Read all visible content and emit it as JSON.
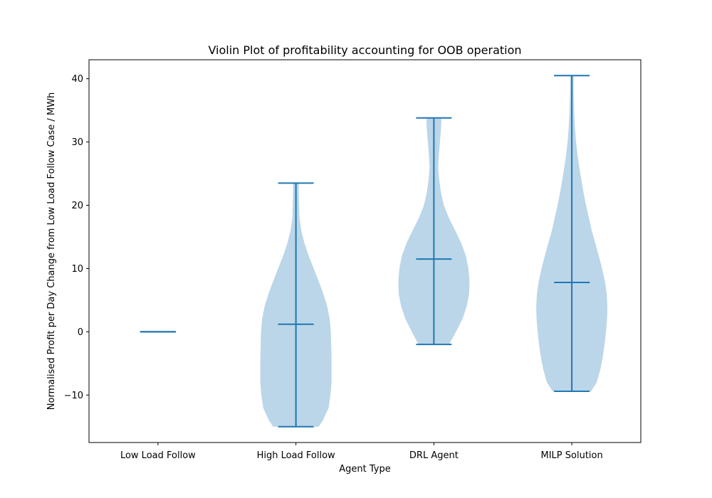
{
  "chart_data": {
    "type": "violin",
    "title": "Violin Plot of profitability accounting for OOB operation",
    "xlabel": "Agent Type",
    "ylabel": "Normalised Profit per Day Change from Low Load Follow Case / MWh",
    "categories": [
      "Low Load Follow",
      "High Load Follow",
      "DRL Agent",
      "MILP Solution"
    ],
    "ylim": [
      -17.5,
      43
    ],
    "yticks": [
      -10,
      0,
      10,
      20,
      30,
      40
    ],
    "grid": false,
    "colors": {
      "line": "#1f77b4",
      "fill": "#1f77b4",
      "fill_opacity": 0.3
    },
    "violins": [
      {
        "category": "Low Load Follow",
        "min": 0,
        "max": 0,
        "mean": 0,
        "density": [
          [
            0,
            0
          ]
        ]
      },
      {
        "category": "High Load Follow",
        "min": -15,
        "max": 23.5,
        "mean": 1.2,
        "density": [
          [
            -15,
            0.64
          ],
          [
            -14,
            0.76
          ],
          [
            -12,
            0.92
          ],
          [
            -10,
            0.97
          ],
          [
            -8,
            1.0
          ],
          [
            -6,
            1.0
          ],
          [
            -4,
            1.0
          ],
          [
            -2,
            0.99
          ],
          [
            0,
            0.98
          ],
          [
            2,
            0.95
          ],
          [
            4,
            0.88
          ],
          [
            6,
            0.77
          ],
          [
            8,
            0.64
          ],
          [
            10,
            0.5
          ],
          [
            12,
            0.36
          ],
          [
            14,
            0.24
          ],
          [
            16,
            0.15
          ],
          [
            18,
            0.1
          ],
          [
            20,
            0.09
          ],
          [
            22,
            0.08
          ],
          [
            23.5,
            0.08
          ]
        ]
      },
      {
        "category": "DRL Agent",
        "min": -2,
        "max": 33.8,
        "mean": 11.5,
        "density": [
          [
            -2,
            0.43
          ],
          [
            0,
            0.62
          ],
          [
            2,
            0.8
          ],
          [
            4,
            0.92
          ],
          [
            6,
            0.99
          ],
          [
            8,
            1.0
          ],
          [
            10,
            0.97
          ],
          [
            12,
            0.9
          ],
          [
            14,
            0.77
          ],
          [
            16,
            0.6
          ],
          [
            18,
            0.42
          ],
          [
            20,
            0.28
          ],
          [
            22,
            0.2
          ],
          [
            24,
            0.15
          ],
          [
            26,
            0.12
          ],
          [
            28,
            0.14
          ],
          [
            30,
            0.17
          ],
          [
            32,
            0.2
          ],
          [
            33.8,
            0.21
          ]
        ]
      },
      {
        "category": "MILP Solution",
        "min": -9.4,
        "max": 40.5,
        "mean": 7.8,
        "density": [
          [
            -9.4,
            0.54
          ],
          [
            -8,
            0.7
          ],
          [
            -6,
            0.8
          ],
          [
            -4,
            0.87
          ],
          [
            -2,
            0.92
          ],
          [
            0,
            0.96
          ],
          [
            2,
            0.99
          ],
          [
            4,
            1.0
          ],
          [
            6,
            0.98
          ],
          [
            8,
            0.93
          ],
          [
            10,
            0.85
          ],
          [
            12,
            0.76
          ],
          [
            14,
            0.66
          ],
          [
            16,
            0.56
          ],
          [
            18,
            0.48
          ],
          [
            20,
            0.4
          ],
          [
            22,
            0.33
          ],
          [
            24,
            0.27
          ],
          [
            26,
            0.21
          ],
          [
            28,
            0.16
          ],
          [
            30,
            0.12
          ],
          [
            32,
            0.09
          ],
          [
            34,
            0.07
          ],
          [
            36,
            0.06
          ],
          [
            38,
            0.05
          ],
          [
            40.5,
            0.05
          ]
        ]
      }
    ]
  }
}
